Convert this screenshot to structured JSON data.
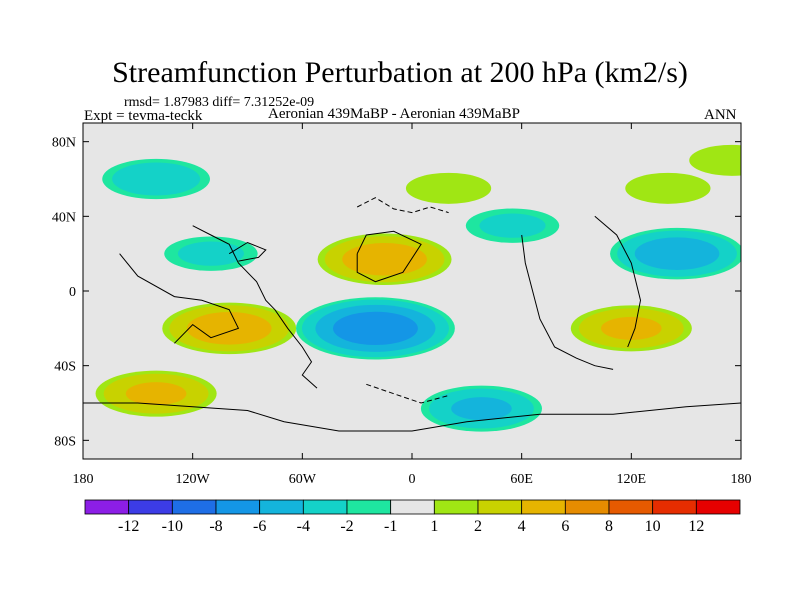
{
  "title": "Streamfunction Perturbation at 200 hPa (km2/s)",
  "stats": "rmsd= 1.87983  diff= 7.31252e-09",
  "experiment": "Expt = tevma-teckk",
  "subtitle": "Aeronian 439MaBP - Aeronian 439MaBP",
  "season": "ANN",
  "chart_data": {
    "type": "heatmap",
    "title": "Streamfunction Perturbation at 200 hPa (km2/s)",
    "x_ticks": [
      "180",
      "120W",
      "60W",
      "0",
      "60E",
      "120E",
      "180"
    ],
    "x_tick_lon": [
      -180,
      -120,
      -60,
      0,
      60,
      120,
      180
    ],
    "y_ticks": [
      "80N",
      "40N",
      "0",
      "40S",
      "80S"
    ],
    "y_tick_lat": [
      80,
      40,
      0,
      -40,
      -80
    ],
    "xlim": [
      -180,
      180
    ],
    "ylim": [
      -90,
      90
    ],
    "colorbar": {
      "labels": [
        "-12",
        "-10",
        "-8",
        "-6",
        "-4",
        "-2",
        "-1",
        "1",
        "2",
        "4",
        "6",
        "8",
        "10",
        "12"
      ],
      "colors": [
        "#8c1ee6",
        "#3c3ce6",
        "#1e6ee6",
        "#1496e6",
        "#14b4dc",
        "#14d2c8",
        "#1ee6a0",
        "#e6e6e6",
        "#a0e614",
        "#c8d200",
        "#e6b400",
        "#e68c00",
        "#e65a00",
        "#e62d00",
        "#e60000"
      ]
    },
    "field_blobs": [
      {
        "lon": -140,
        "lat": 60,
        "value": -3
      },
      {
        "lon": -110,
        "lat": 20,
        "value": -2
      },
      {
        "lon": -100,
        "lat": -20,
        "value": 5
      },
      {
        "lon": -140,
        "lat": -55,
        "value": 4
      },
      {
        "lon": -15,
        "lat": 17,
        "value": 5
      },
      {
        "lon": -20,
        "lat": -20,
        "value": -7
      },
      {
        "lon": 20,
        "lat": 55,
        "value": 1.5
      },
      {
        "lon": 38,
        "lat": -63,
        "value": -4
      },
      {
        "lon": 55,
        "lat": 35,
        "value": -2
      },
      {
        "lon": 145,
        "lat": 20,
        "value": -5
      },
      {
        "lon": 120,
        "lat": -20,
        "value": 4
      },
      {
        "lon": 140,
        "lat": 55,
        "value": 1.5
      },
      {
        "lon": 175,
        "lat": 70,
        "value": 1.5
      }
    ]
  }
}
